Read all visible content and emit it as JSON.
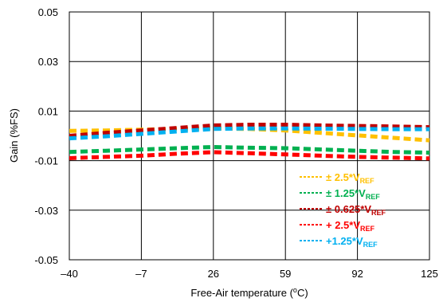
{
  "chart_data": {
    "type": "line",
    "x_ticks": [
      "–40",
      "–7",
      "26",
      "59",
      "92",
      "125"
    ],
    "y_ticks": [
      "0.05",
      "0.03",
      "0.01",
      "-0.01",
      "-0.03",
      "-0.05"
    ],
    "x_tick_values": [
      -40,
      -7,
      26,
      59,
      92,
      125
    ],
    "y_tick_values": [
      0.05,
      0.03,
      0.01,
      -0.01,
      -0.03,
      -0.05
    ],
    "xlim": [
      -40,
      125
    ],
    "ylim": [
      -0.05,
      0.05
    ],
    "grid": true,
    "xlabel": {
      "prefix": "Free-Air temperature (",
      "sup": "o",
      "suffix": "C)"
    },
    "ylabel": "Gain (%FS)",
    "legend_position": "bottom-right",
    "x": [
      -40,
      -23.5,
      -7,
      9.5,
      26,
      42.5,
      59,
      75.5,
      92,
      108.5,
      125
    ],
    "series": [
      {
        "name": "± 2.5*V",
        "sub": "REF",
        "color": "#FFC000",
        "values": [
          0.002,
          0.0022,
          0.0025,
          0.0028,
          0.003,
          0.0028,
          0.0022,
          0.0012,
          0.0002,
          -0.0008,
          -0.0018
        ]
      },
      {
        "name": "± 1.25*V",
        "sub": "REF",
        "color": "#00B050",
        "values": [
          -0.0065,
          -0.006,
          -0.0055,
          -0.005,
          -0.0045,
          -0.0048,
          -0.005,
          -0.0055,
          -0.006,
          -0.0065,
          -0.0068
        ]
      },
      {
        "name": "± 0.625*V",
        "sub": "REF",
        "color": "#C00000",
        "values": [
          0.0,
          0.0012,
          0.0022,
          0.0032,
          0.0042,
          0.0045,
          0.0045,
          0.0042,
          0.004,
          0.0038,
          0.0035
        ]
      },
      {
        "name": "+ 2.5*V",
        "sub": "REF",
        "color": "#FF0000",
        "values": [
          -0.009,
          -0.0085,
          -0.008,
          -0.0072,
          -0.0066,
          -0.007,
          -0.0075,
          -0.008,
          -0.0085,
          -0.0088,
          -0.0091
        ]
      },
      {
        "name": "+1.25*V",
        "sub": "REF",
        "color": "#00B0F0",
        "values": [
          -0.001,
          -0.0002,
          0.0008,
          0.0018,
          0.0028,
          0.003,
          0.003,
          0.0029,
          0.0028,
          0.0027,
          0.0027
        ]
      }
    ]
  }
}
